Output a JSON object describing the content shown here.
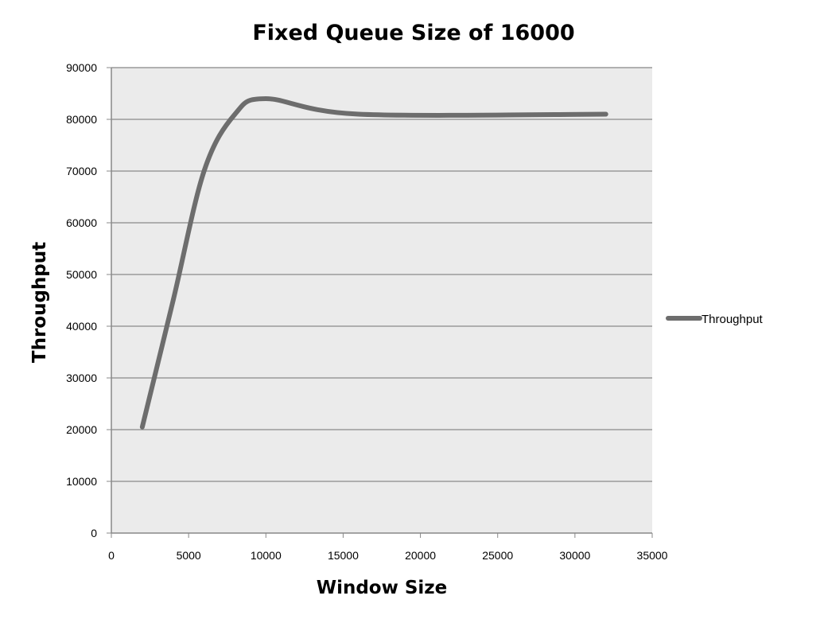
{
  "chart_data": {
    "type": "line",
    "title": "Fixed Queue Size of 16000",
    "xlabel": "Window Size",
    "ylabel": "Throughput",
    "xlim": [
      0,
      35000
    ],
    "ylim": [
      0,
      90000
    ],
    "xticks": [
      0,
      5000,
      10000,
      15000,
      20000,
      25000,
      30000,
      35000
    ],
    "yticks": [
      0,
      10000,
      20000,
      30000,
      40000,
      50000,
      60000,
      70000,
      80000,
      90000
    ],
    "grid": true,
    "legend_position": "right",
    "colors": {
      "plot_background": "#ebebeb",
      "grid": "#9a9a9a",
      "series": "#6d6d6d"
    },
    "series": [
      {
        "name": "Throughput",
        "x": [
          2000,
          4000,
          6000,
          8000,
          10000,
          16000,
          32000
        ],
        "y": [
          20500,
          45000,
          70000,
          81000,
          84000,
          81000,
          81000
        ]
      }
    ]
  }
}
